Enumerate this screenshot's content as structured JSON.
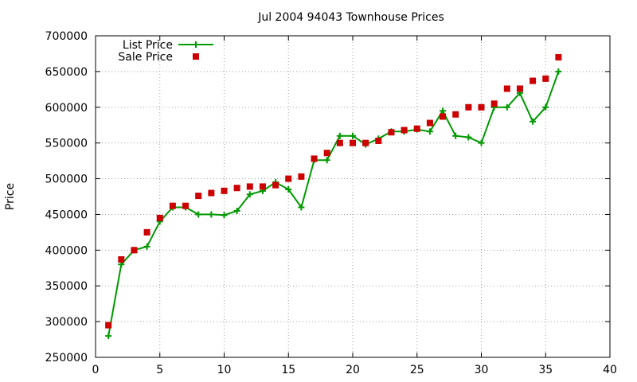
{
  "chart_data": {
    "type": "line",
    "title": "Jul 2004 94043 Townhouse Prices",
    "xlabel": "",
    "ylabel": "Price",
    "xlim": [
      0,
      40
    ],
    "ylim": [
      250000,
      700000
    ],
    "x_ticks": [
      0,
      5,
      10,
      15,
      20,
      25,
      30,
      35,
      40
    ],
    "y_ticks": [
      250000,
      300000,
      350000,
      400000,
      450000,
      500000,
      550000,
      600000,
      650000,
      700000
    ],
    "x_tick_labels": [
      "0",
      "5",
      "10",
      "15",
      "20",
      "25",
      "30",
      "35",
      "40"
    ],
    "y_tick_labels": [
      "250000",
      "300000",
      "350000",
      "400000",
      "450000",
      "500000",
      "550000",
      "600000",
      "650000",
      "700000"
    ],
    "grid": true,
    "legend_position": "top-left",
    "series": [
      {
        "name": "List Price",
        "style": "line-plus",
        "color": "#009900",
        "x": [
          1,
          2,
          3,
          4,
          5,
          6,
          7,
          8,
          9,
          10,
          11,
          12,
          13,
          14,
          15,
          16,
          17,
          18,
          19,
          20,
          21,
          22,
          23,
          24,
          25,
          26,
          27,
          28,
          29,
          30,
          31,
          32,
          33,
          34,
          35,
          36
        ],
        "values": [
          280000,
          380000,
          400000,
          405000,
          440000,
          460000,
          460000,
          450000,
          450000,
          449000,
          455000,
          478000,
          483000,
          495000,
          485000,
          460000,
          526000,
          526000,
          560000,
          560000,
          548000,
          556000,
          566000,
          566000,
          569000,
          566000,
          595000,
          560000,
          558000,
          550000,
          600000,
          600000,
          620000,
          580000,
          600000,
          650000
        ]
      },
      {
        "name": "Sale Price",
        "style": "square-markers",
        "color": "#cc0000",
        "x": [
          1,
          2,
          3,
          4,
          5,
          6,
          7,
          8,
          9,
          10,
          11,
          12,
          13,
          14,
          15,
          16,
          17,
          18,
          19,
          20,
          21,
          22,
          23,
          24,
          25,
          26,
          27,
          28,
          29,
          30,
          31,
          32,
          33,
          34,
          35,
          36
        ],
        "values": [
          295000,
          387000,
          400000,
          425000,
          445000,
          462000,
          462000,
          476000,
          480000,
          483000,
          487000,
          489000,
          489000,
          491000,
          500000,
          503000,
          528000,
          536000,
          550000,
          550000,
          550000,
          553000,
          565000,
          568000,
          570000,
          578000,
          587000,
          590000,
          600000,
          600000,
          605000,
          626000,
          626000,
          637000,
          640000,
          670000
        ]
      }
    ]
  }
}
